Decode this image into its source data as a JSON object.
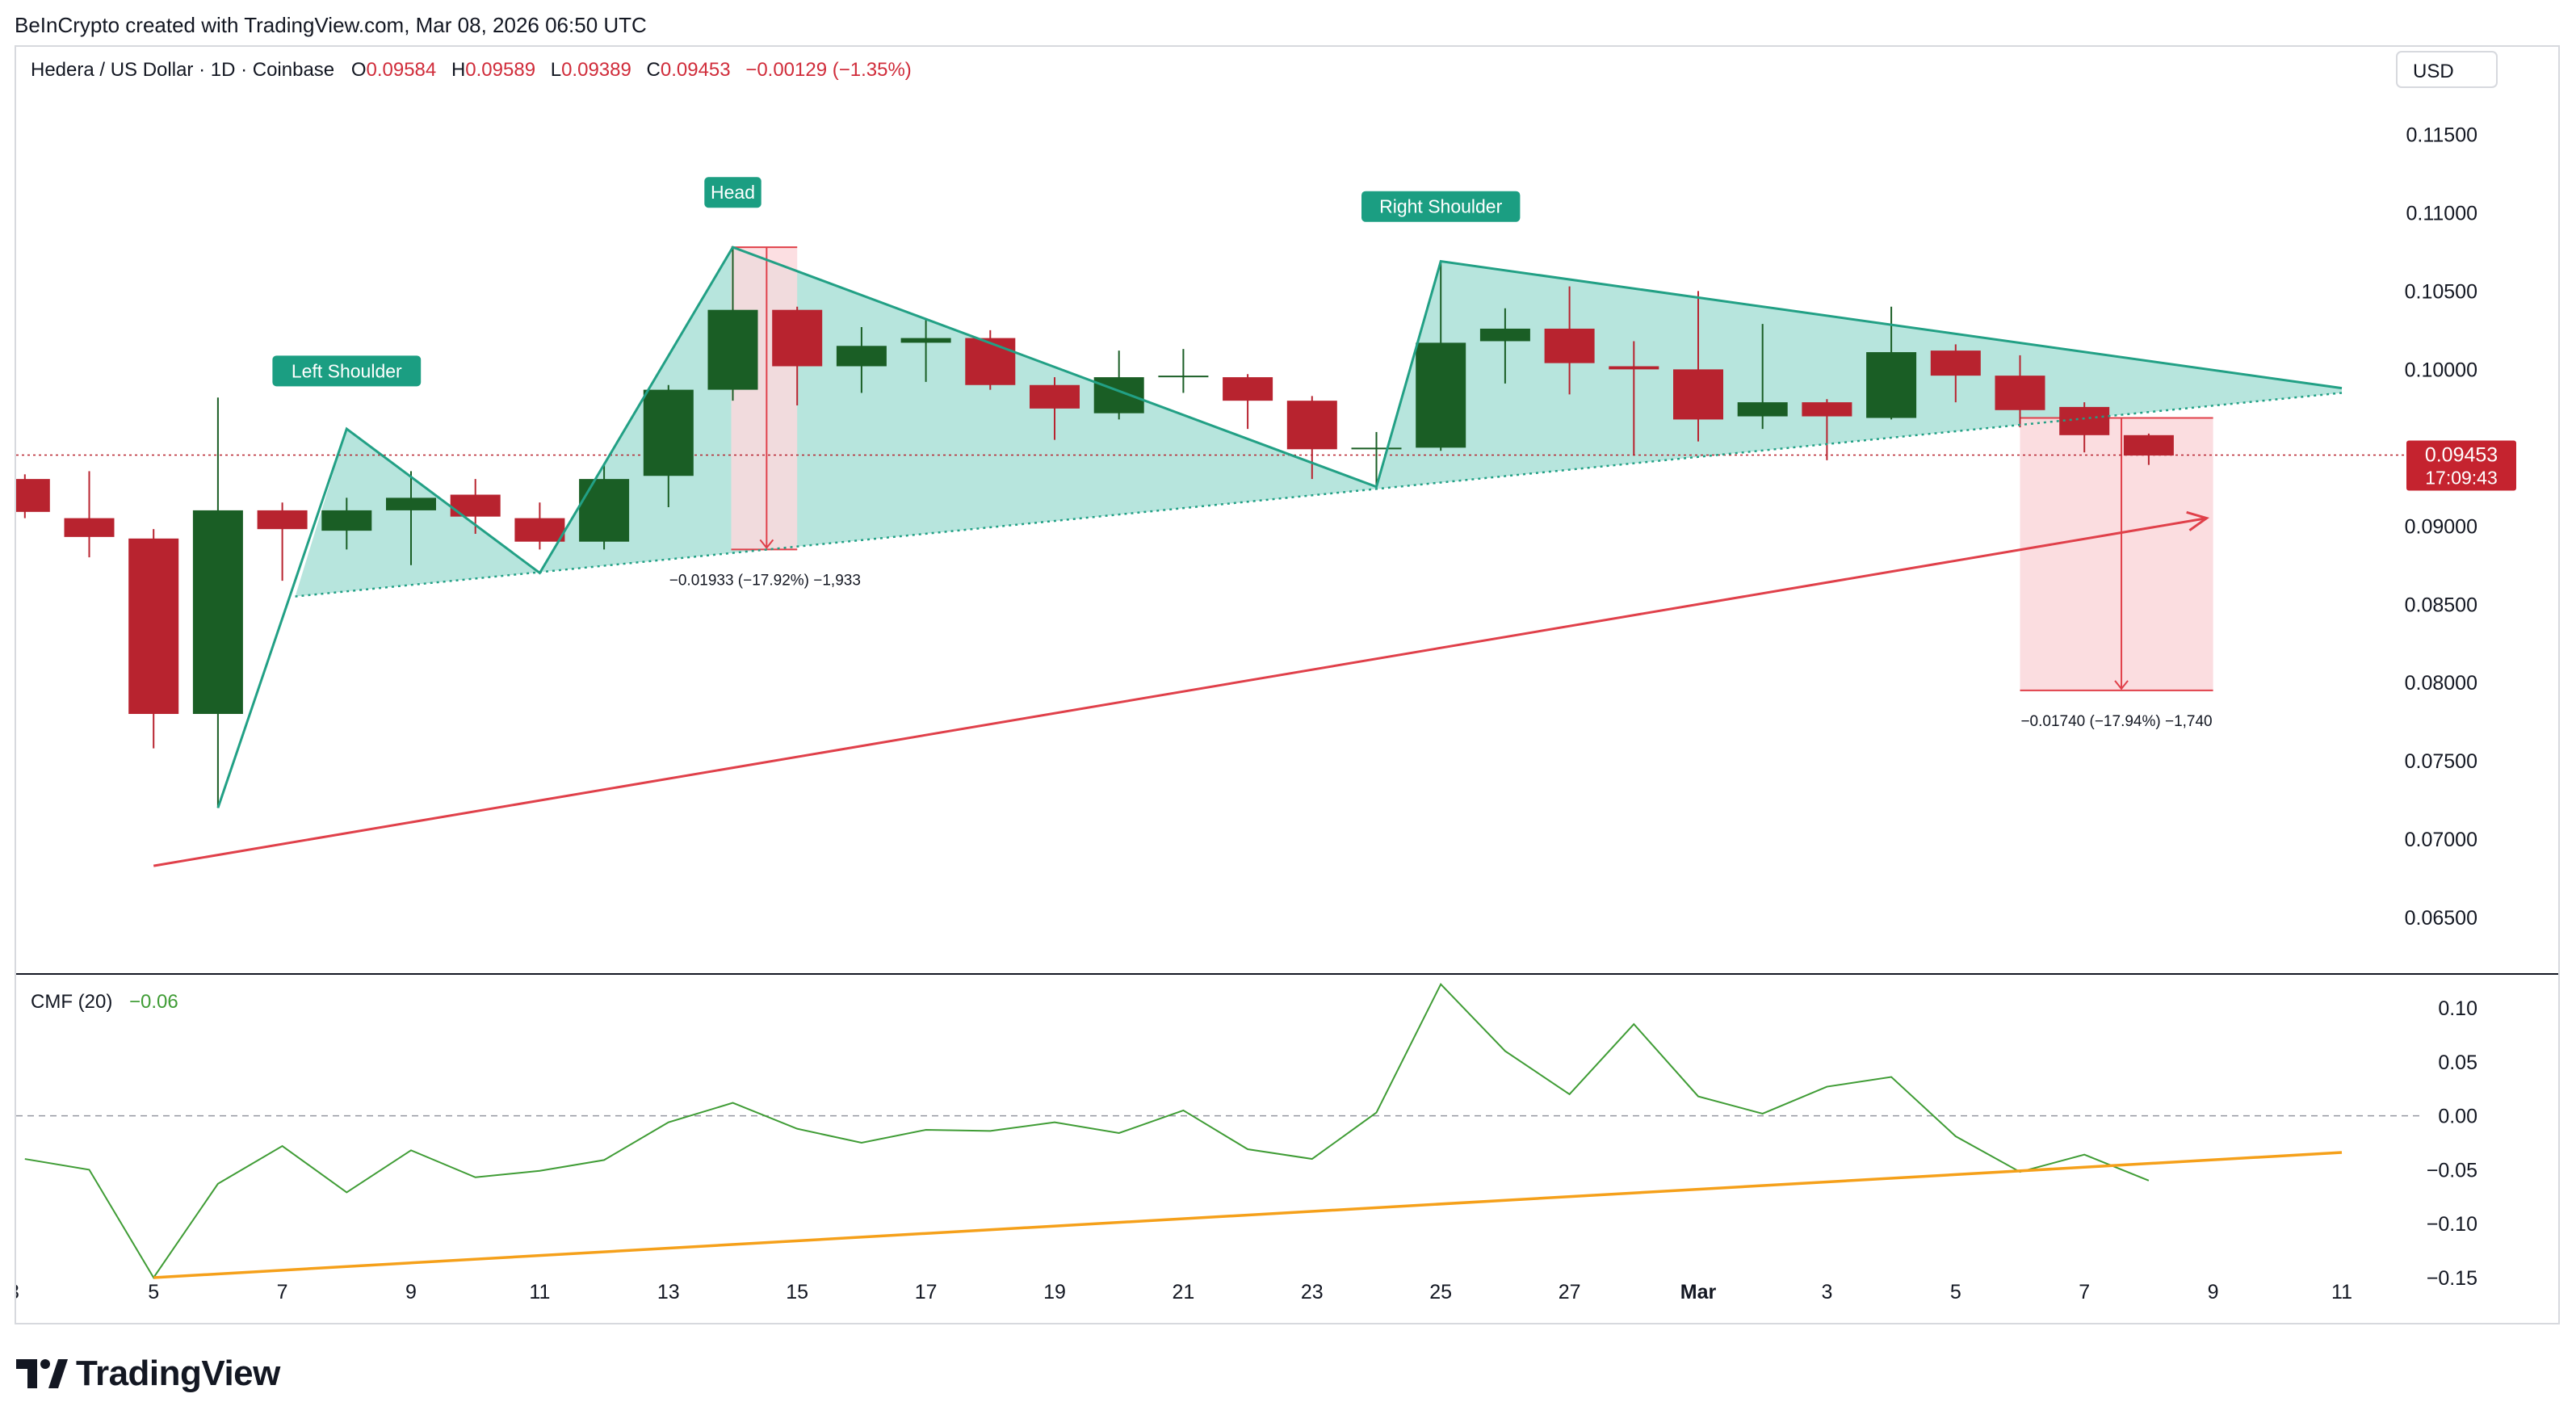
{
  "credit": "BeInCrypto created with TradingView.com, Mar 08, 2026 06:50 UTC",
  "footer_brand": "TradingView",
  "currency_button": "USD",
  "colors": {
    "up": "#1a5e25",
    "down": "#b8232f",
    "pattern_fill": "#b3e4db",
    "pattern_stroke": "#22a085",
    "trend_red": "#e0404a",
    "trend_orange": "#f5a01a",
    "cmf_line": "#3f9c35",
    "measure_fill": "#fbd9dd"
  },
  "header": {
    "symbol": "Hedera / US Dollar · 1D · Coinbase",
    "o_label": "O",
    "o_value": "0.09584",
    "h_label": "H",
    "h_value": "0.09589",
    "l_label": "L",
    "l_value": "0.09389",
    "c_label": "C",
    "c_value": "0.09453",
    "change": "−0.00129 (−1.35%)"
  },
  "price_badge": {
    "price": "0.09453",
    "countdown": "17:09:43"
  },
  "annotations": {
    "left_shoulder": "Left Shoulder",
    "head": "Head",
    "right_shoulder": "Right Shoulder",
    "measure_head": "−0.01933 (−17.92%) −1,933",
    "measure_target": "−0.01740 (−17.94%) −1,740"
  },
  "cmf": {
    "label": "CMF (20)",
    "value": "−0.06"
  },
  "chart_data": [
    {
      "type": "candlestick",
      "title": "Hedera / US Dollar · 1D · Coinbase",
      "ylim": [
        0.0615,
        0.1175
      ],
      "y_ticks": [
        "0.11500",
        "0.11000",
        "0.10500",
        "0.10000",
        "0.09000",
        "0.08500",
        "0.08000",
        "0.07500",
        "0.07000",
        "0.06500"
      ],
      "x_ticks": [
        {
          "day": 5,
          "label": "5"
        },
        {
          "day": 7,
          "label": "7"
        },
        {
          "day": 9,
          "label": "9"
        },
        {
          "day": 11,
          "label": "11"
        },
        {
          "day": 13,
          "label": "13"
        },
        {
          "day": 15,
          "label": "15"
        },
        {
          "day": 17,
          "label": "17"
        },
        {
          "day": 19,
          "label": "19"
        },
        {
          "day": 21,
          "label": "21"
        },
        {
          "day": 23,
          "label": "23"
        },
        {
          "day": 25,
          "label": "25"
        },
        {
          "day": 27,
          "label": "27"
        },
        {
          "day": 29,
          "label": "Mar"
        },
        {
          "day": 31,
          "label": "3"
        },
        {
          "day": 33,
          "label": "5"
        },
        {
          "day": 35,
          "label": "7"
        },
        {
          "day": 37,
          "label": "9"
        },
        {
          "day": 39,
          "label": "11"
        }
      ],
      "candles": [
        {
          "day": 3,
          "o": 0.093,
          "h": 0.0933,
          "l": 0.0905,
          "c": 0.0909
        },
        {
          "day": 4,
          "o": 0.0905,
          "h": 0.0935,
          "l": 0.088,
          "c": 0.0893
        },
        {
          "day": 5,
          "o": 0.0892,
          "h": 0.0898,
          "l": 0.0758,
          "c": 0.078
        },
        {
          "day": 6,
          "o": 0.078,
          "h": 0.0982,
          "l": 0.072,
          "c": 0.091
        },
        {
          "day": 7,
          "o": 0.091,
          "h": 0.0915,
          "l": 0.0865,
          "c": 0.0898
        },
        {
          "day": 8,
          "o": 0.0897,
          "h": 0.0918,
          "l": 0.0885,
          "c": 0.091
        },
        {
          "day": 9,
          "o": 0.091,
          "h": 0.0935,
          "l": 0.0875,
          "c": 0.0918
        },
        {
          "day": 10,
          "o": 0.092,
          "h": 0.093,
          "l": 0.0895,
          "c": 0.0906
        },
        {
          "day": 11,
          "o": 0.0905,
          "h": 0.0915,
          "l": 0.0885,
          "c": 0.089
        },
        {
          "day": 12,
          "o": 0.089,
          "h": 0.094,
          "l": 0.0885,
          "c": 0.093
        },
        {
          "day": 13,
          "o": 0.0932,
          "h": 0.099,
          "l": 0.0912,
          "c": 0.0987
        },
        {
          "day": 14,
          "o": 0.0987,
          "h": 0.1078,
          "l": 0.098,
          "c": 0.1038
        },
        {
          "day": 15,
          "o": 0.1038,
          "h": 0.104,
          "l": 0.0977,
          "c": 0.1002
        },
        {
          "day": 16,
          "o": 0.1002,
          "h": 0.1027,
          "l": 0.0985,
          "c": 0.1015
        },
        {
          "day": 17,
          "o": 0.1017,
          "h": 0.1032,
          "l": 0.0992,
          "c": 0.102
        },
        {
          "day": 18,
          "o": 0.102,
          "h": 0.1025,
          "l": 0.0987,
          "c": 0.099
        },
        {
          "day": 19,
          "o": 0.099,
          "h": 0.0995,
          "l": 0.0955,
          "c": 0.0975
        },
        {
          "day": 20,
          "o": 0.0972,
          "h": 0.1012,
          "l": 0.0968,
          "c": 0.0995
        },
        {
          "day": 21,
          "o": 0.0995,
          "h": 0.1013,
          "l": 0.0985,
          "c": 0.0996
        },
        {
          "day": 22,
          "o": 0.0995,
          "h": 0.0997,
          "l": 0.0962,
          "c": 0.098
        },
        {
          "day": 23,
          "o": 0.098,
          "h": 0.0983,
          "l": 0.093,
          "c": 0.0949
        },
        {
          "day": 24,
          "o": 0.0949,
          "h": 0.096,
          "l": 0.0925,
          "c": 0.095
        },
        {
          "day": 25,
          "o": 0.095,
          "h": 0.1069,
          "l": 0.0948,
          "c": 0.1017
        },
        {
          "day": 26,
          "o": 0.1018,
          "h": 0.1039,
          "l": 0.0991,
          "c": 0.1026
        },
        {
          "day": 27,
          "o": 0.1026,
          "h": 0.1053,
          "l": 0.0984,
          "c": 0.1004
        },
        {
          "day": 28,
          "o": 0.1002,
          "h": 0.1018,
          "l": 0.0945,
          "c": 0.1
        },
        {
          "day": 29,
          "o": 0.1,
          "h": 0.105,
          "l": 0.0954,
          "c": 0.0968
        },
        {
          "day": 30,
          "o": 0.097,
          "h": 0.1029,
          "l": 0.0962,
          "c": 0.0979
        },
        {
          "day": 31,
          "o": 0.0979,
          "h": 0.0981,
          "l": 0.0942,
          "c": 0.097
        },
        {
          "day": 32,
          "o": 0.0969,
          "h": 0.104,
          "l": 0.0968,
          "c": 0.1011
        },
        {
          "day": 33,
          "o": 0.1012,
          "h": 0.1016,
          "l": 0.0979,
          "c": 0.0996
        },
        {
          "day": 34,
          "o": 0.0996,
          "h": 0.1009,
          "l": 0.0963,
          "c": 0.0974
        },
        {
          "day": 35,
          "o": 0.0976,
          "h": 0.0979,
          "l": 0.0947,
          "c": 0.0958
        },
        {
          "day": 36,
          "o": 0.0958,
          "h": 0.0959,
          "l": 0.0939,
          "c": 0.0945
        }
      ],
      "current_price": 0.09453,
      "head_and_shoulders": [
        {
          "day": 6,
          "price": 0.072
        },
        {
          "day": 8,
          "price": 0.0962
        },
        {
          "day": 11,
          "price": 0.087
        },
        {
          "day": 14,
          "price": 0.1078
        },
        {
          "day": 24,
          "price": 0.0925
        },
        {
          "day": 25,
          "price": 0.1069
        },
        {
          "day": 39,
          "price": 0.0988
        }
      ],
      "neckline": [
        {
          "day": 7.2,
          "price": 0.0855
        },
        {
          "day": 39,
          "price": 0.0985
        }
      ],
      "upper_trendline": [
        {
          "day": 25,
          "price": 0.1069
        },
        {
          "day": 39,
          "price": 0.0988
        }
      ],
      "red_trendline": [
        {
          "day": 5,
          "price": 0.0683
        },
        {
          "day": 36.9,
          "price": 0.0905
        }
      ],
      "measure_head": {
        "from_day": 14,
        "to_day": 15,
        "top": 0.1078,
        "bottom": 0.0885
      },
      "measure_target": {
        "from_day": 34,
        "to_day": 37,
        "top": 0.0969,
        "bottom": 0.0795
      }
    },
    {
      "type": "line",
      "title": "CMF (20)",
      "ylim": [
        -0.165,
        0.13
      ],
      "y_ticks": [
        "0.10",
        "0.05",
        "0.00",
        "−0.05",
        "−0.10",
        "−0.15"
      ],
      "zero_line": 0.0,
      "series": [
        {
          "name": "CMF (20)",
          "points": [
            {
              "day": 3,
              "value": -0.04
            },
            {
              "day": 4,
              "value": -0.05
            },
            {
              "day": 5,
              "value": -0.15
            },
            {
              "day": 6,
              "value": -0.063
            },
            {
              "day": 7,
              "value": -0.028
            },
            {
              "day": 8,
              "value": -0.071
            },
            {
              "day": 9,
              "value": -0.032
            },
            {
              "day": 10,
              "value": -0.057
            },
            {
              "day": 11,
              "value": -0.051
            },
            {
              "day": 12,
              "value": -0.041
            },
            {
              "day": 13,
              "value": -0.006
            },
            {
              "day": 14,
              "value": 0.012
            },
            {
              "day": 15,
              "value": -0.012
            },
            {
              "day": 16,
              "value": -0.025
            },
            {
              "day": 17,
              "value": -0.013
            },
            {
              "day": 18,
              "value": -0.014
            },
            {
              "day": 19,
              "value": -0.006
            },
            {
              "day": 20,
              "value": -0.016
            },
            {
              "day": 21,
              "value": 0.005
            },
            {
              "day": 22,
              "value": -0.031
            },
            {
              "day": 23,
              "value": -0.04
            },
            {
              "day": 24,
              "value": 0.003
            },
            {
              "day": 25,
              "value": 0.122
            },
            {
              "day": 26,
              "value": 0.06
            },
            {
              "day": 27,
              "value": 0.02
            },
            {
              "day": 28,
              "value": 0.085
            },
            {
              "day": 29,
              "value": 0.018
            },
            {
              "day": 30,
              "value": 0.002
            },
            {
              "day": 31,
              "value": 0.027
            },
            {
              "day": 32,
              "value": 0.036
            },
            {
              "day": 33,
              "value": -0.019
            },
            {
              "day": 34,
              "value": -0.052
            },
            {
              "day": 35,
              "value": -0.036
            },
            {
              "day": 36,
              "value": -0.06
            }
          ]
        }
      ],
      "trendline": [
        {
          "day": 5,
          "value": -0.15
        },
        {
          "day": 39,
          "value": -0.034
        }
      ]
    }
  ]
}
